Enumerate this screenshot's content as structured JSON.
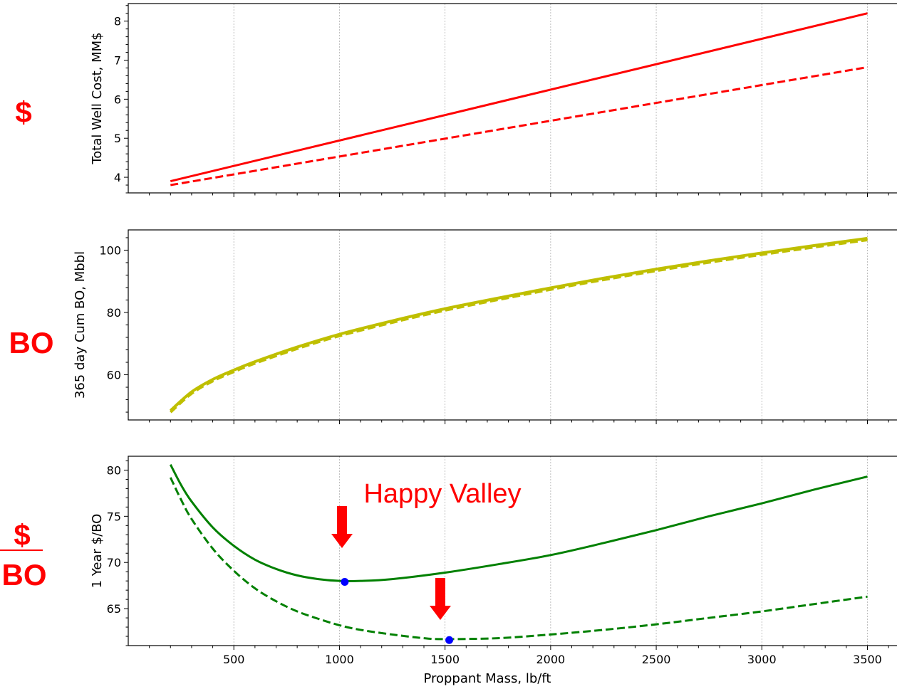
{
  "side_labels": {
    "top": "$",
    "middle": "BO",
    "bottom_numerator": "$",
    "bottom_denominator": "BO"
  },
  "annotation": {
    "text": "Happy Valley"
  },
  "chart_data": [
    {
      "type": "line",
      "title": "",
      "ylabel": "Total Well Cost, MM$",
      "xlabel": "",
      "xlim": [
        0,
        3640
      ],
      "ylim": [
        3.6,
        8.45
      ],
      "yticks": [
        4,
        5,
        6,
        7,
        8
      ],
      "grid": "vertical",
      "series": [
        {
          "style": "solid",
          "color": "#ff0000",
          "x": [
            200,
            3500
          ],
          "y": [
            3.9,
            8.2
          ]
        },
        {
          "style": "dashed",
          "color": "#ff0000",
          "x": [
            200,
            3500
          ],
          "y": [
            3.8,
            6.82
          ]
        }
      ]
    },
    {
      "type": "line",
      "title": "",
      "ylabel": "365 day Cum BO, Mbbl",
      "xlabel": "",
      "xlim": [
        0,
        3640
      ],
      "ylim": [
        45.5,
        106.5
      ],
      "yticks": [
        60,
        80,
        100
      ],
      "grid": "vertical",
      "series": [
        {
          "style": "solid",
          "color": "#bfbf00",
          "x": [
            200,
            300,
            400,
            500,
            600,
            800,
            1000,
            1250,
            1500,
            1750,
            2000,
            2250,
            2500,
            2750,
            3000,
            3250,
            3500
          ],
          "y": [
            48.5,
            54.5,
            58.5,
            61.5,
            64.2,
            68.9,
            73.0,
            77.3,
            81.2,
            84.6,
            87.9,
            91.0,
            93.9,
            96.6,
            99.1,
            101.5,
            103.8
          ]
        },
        {
          "style": "dashed",
          "color": "#bfbf00",
          "x": [
            200,
            300,
            400,
            500,
            600,
            800,
            1000,
            1250,
            1500,
            1750,
            2000,
            2250,
            2500,
            2750,
            3000,
            3250,
            3500
          ],
          "y": [
            48.0,
            54.0,
            58.0,
            61.0,
            63.7,
            68.4,
            72.5,
            76.8,
            80.7,
            84.1,
            87.4,
            90.5,
            93.4,
            96.1,
            98.6,
            101.0,
            103.3
          ]
        }
      ]
    },
    {
      "type": "line",
      "title": "",
      "ylabel": "1 Year $/BO",
      "xlabel": "Proppant Mass, lb/ft",
      "xlim": [
        0,
        3640
      ],
      "ylim": [
        61.0,
        81.5
      ],
      "yticks": [
        65,
        70,
        75,
        80
      ],
      "xticks": [
        500,
        1000,
        1500,
        2000,
        2500,
        3000,
        3500
      ],
      "grid": "vertical",
      "series": [
        {
          "style": "solid",
          "color": "#008000",
          "x": [
            200,
            250,
            300,
            400,
            500,
            600,
            700,
            800,
            900,
            1000,
            1100,
            1250,
            1500,
            1750,
            2000,
            2250,
            2500,
            2750,
            3000,
            3250,
            3500
          ],
          "y": [
            80.6,
            78.4,
            76.6,
            73.8,
            71.8,
            70.3,
            69.3,
            68.6,
            68.2,
            68.0,
            68.0,
            68.2,
            68.9,
            69.8,
            70.8,
            72.1,
            73.5,
            75.0,
            76.4,
            77.9,
            79.3
          ]
        },
        {
          "style": "dashed",
          "color": "#008000",
          "x": [
            200,
            250,
            300,
            400,
            500,
            600,
            700,
            800,
            900,
            1000,
            1100,
            1250,
            1400,
            1500,
            1750,
            2000,
            2250,
            2500,
            2750,
            3000,
            3250,
            3500
          ],
          "y": [
            79.2,
            76.8,
            74.7,
            71.5,
            69.1,
            67.2,
            65.8,
            64.7,
            63.9,
            63.2,
            62.7,
            62.2,
            61.8,
            61.7,
            61.8,
            62.2,
            62.7,
            63.3,
            64.0,
            64.7,
            65.5,
            66.3
          ]
        }
      ],
      "markers": [
        {
          "x": 1025,
          "y": 67.9,
          "color": "#0000ff"
        },
        {
          "x": 1520,
          "y": 61.6,
          "color": "#0000ff"
        }
      ]
    }
  ]
}
